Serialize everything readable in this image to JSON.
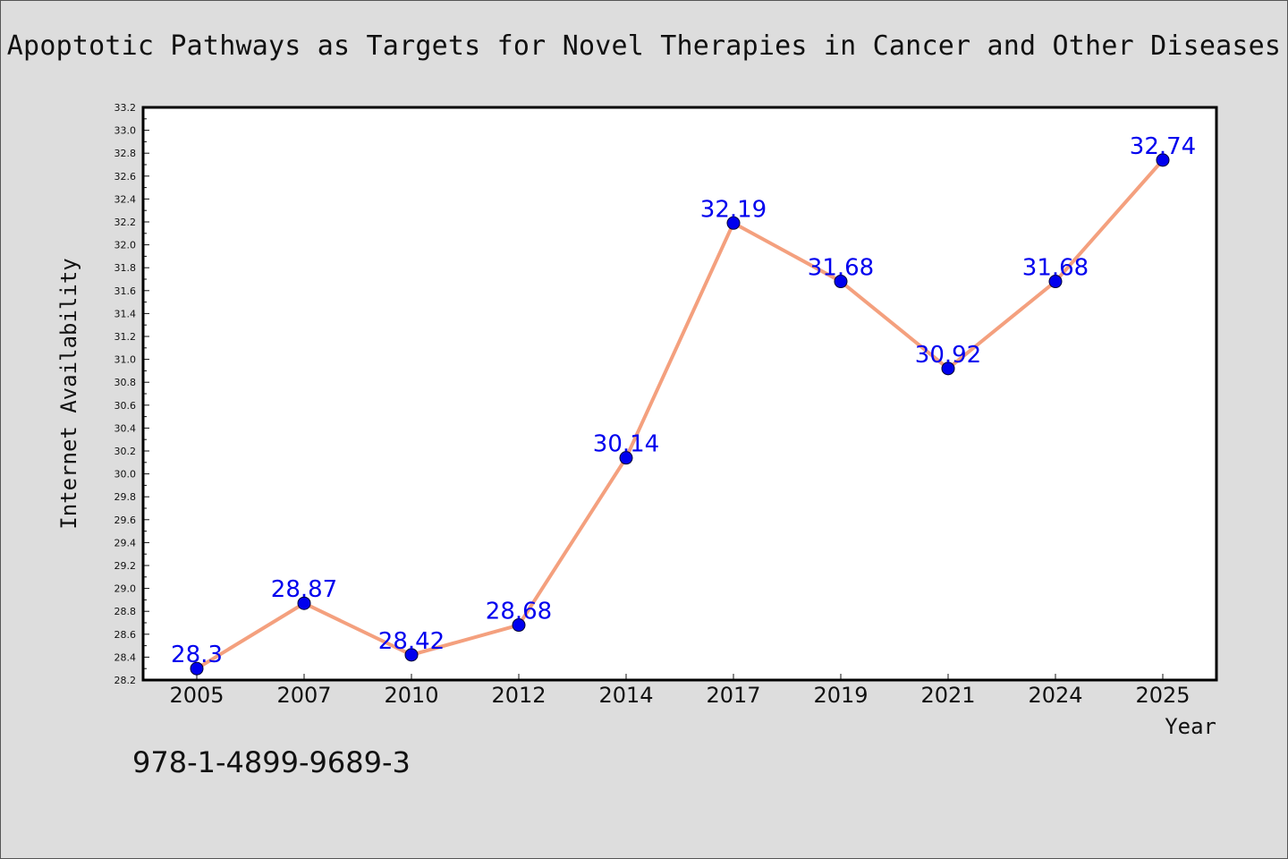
{
  "title": "Apoptotic Pathways as Targets for Novel Therapies in Cancer and Other Diseases",
  "isbn": "978-1-4899-9689-3",
  "colors": {
    "background": "#dddddd",
    "plot_background": "#ffffff",
    "line": "#f4a07e",
    "marker": "#0000ee",
    "data_label": "#0000ee"
  },
  "chart_data": {
    "type": "line",
    "title": "Apoptotic Pathways as Targets for Novel Therapies in Cancer and Other Diseases",
    "xlabel": "Year",
    "ylabel": "Internet Availability",
    "categories": [
      "2005",
      "2007",
      "2010",
      "2012",
      "2014",
      "2017",
      "2019",
      "2021",
      "2024",
      "2025"
    ],
    "series": [
      {
        "values": [
          28.3,
          28.87,
          28.42,
          28.68,
          30.14,
          32.19,
          31.68,
          30.92,
          31.68,
          32.74
        ],
        "labels": [
          "28.3",
          "28.87",
          "28.42",
          "28.68",
          "30.14",
          "32.19",
          "31.68",
          "30.92",
          "31.68",
          "32.74"
        ]
      }
    ],
    "ylim": [
      28.2,
      33.2
    ],
    "yticks": [
      "28.2",
      "28.4",
      "28.6",
      "28.8",
      "29.0",
      "29.2",
      "29.4",
      "29.6",
      "29.8",
      "30.0",
      "30.2",
      "30.4",
      "30.6",
      "30.8",
      "31.0",
      "31.2",
      "31.4",
      "31.6",
      "31.8",
      "32.0",
      "32.2",
      "32.4",
      "32.6",
      "32.8",
      "33.0",
      "33.2"
    ],
    "grid": false,
    "legend": "none"
  }
}
